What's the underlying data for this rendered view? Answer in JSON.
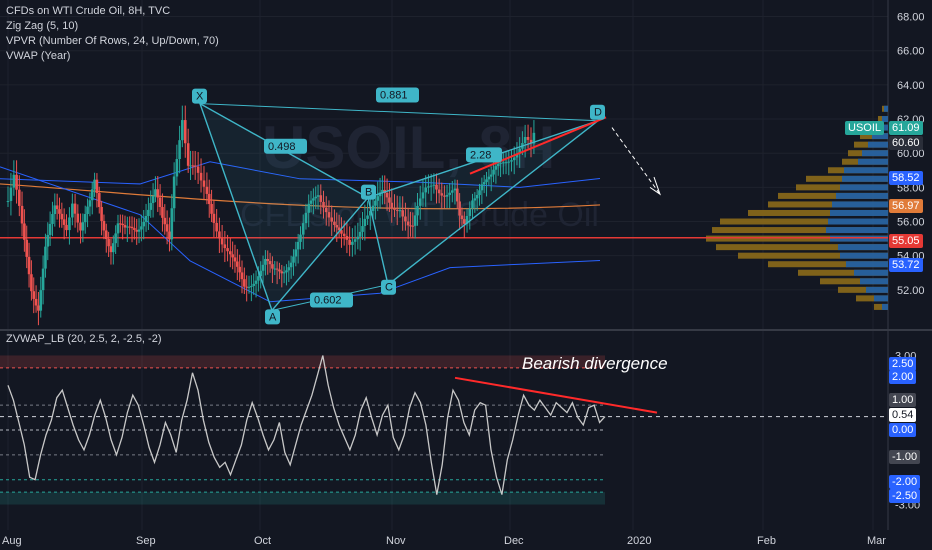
{
  "header": {
    "title": "CFDs on WTI Crude Oil, 8H, TVC",
    "indicators": [
      "Zig Zag (5, 10)",
      "VPVR (Number Of Rows, 24, Up/Down, 70)",
      "VWAP (Year)"
    ]
  },
  "watermark": {
    "symbol": "USOIL, 8H",
    "name": "CFDs on WTI Crude Oil"
  },
  "oscillator": {
    "title": "ZVWAP_LB (20, 2.5, 2, -2.5, -2)",
    "annotation": "Bearish divergence"
  },
  "colors": {
    "background": "#131722",
    "up": "#26a69a",
    "down": "#ef5350",
    "pattern": "#3fb6c8",
    "divergence": "#ff2a2a",
    "vwap": "#e07b39",
    "band": "#2962ff"
  },
  "price_tags": {
    "symbol": "USOIL",
    "last": "61.09",
    "prev": "60.60",
    "a": "58.52",
    "b": "56.97",
    "c": "55.05",
    "d": "53.72"
  },
  "osc_tags": {
    "t250": "2.50",
    "t200": "2.00",
    "t100": "1.00",
    "last": "0.54",
    "t000": "0.00",
    "m100": "-1.00",
    "m200": "-2.00",
    "m250": "-2.50"
  },
  "chart_data": [
    {
      "type": "candlestick",
      "title": "CFDs on WTI Crude Oil, 8H, TVC",
      "x_ticks": [
        "Aug",
        "Sep",
        "Oct",
        "Nov",
        "Dec",
        "2020",
        "Feb",
        "Mar"
      ],
      "y_ticks": [
        "52.00",
        "54.00",
        "56.00",
        "58.00",
        "60.00",
        "62.00",
        "64.00",
        "66.00",
        "68.00"
      ],
      "ylim": [
        50,
        68.5
      ],
      "close_path": [
        [
          0,
          57.2
        ],
        [
          0.5,
          58.4
        ],
        [
          1.2,
          55.5
        ],
        [
          2,
          52.2
        ],
        [
          2.6,
          51.2
        ],
        [
          3.2,
          54.5
        ],
        [
          4,
          56.5
        ],
        [
          5,
          55.8
        ],
        [
          5.5,
          57.5
        ],
        [
          6.2,
          55.6
        ],
        [
          7,
          56.8
        ],
        [
          7.4,
          58.1
        ],
        [
          8,
          56.2
        ],
        [
          8.8,
          54.6
        ],
        [
          9.4,
          55.8
        ],
        [
          10,
          55.2
        ],
        [
          11,
          55.6
        ],
        [
          11.8,
          56.7
        ],
        [
          12.6,
          57.6
        ],
        [
          13.2,
          55.8
        ],
        [
          13.8,
          55.0
        ],
        [
          14.2,
          59.0
        ],
        [
          14.9,
          62.3
        ],
        [
          15.4,
          59.3
        ],
        [
          16,
          58.8
        ],
        [
          16.5,
          58.0
        ],
        [
          17,
          57.5
        ],
        [
          17.6,
          56.3
        ],
        [
          18.3,
          55.0
        ],
        [
          19,
          53.9
        ],
        [
          19.6,
          52.9
        ],
        [
          20.2,
          52.1
        ],
        [
          21,
          52.8
        ],
        [
          22,
          53.6
        ],
        [
          22.6,
          52.8
        ],
        [
          23.4,
          53.1
        ],
        [
          24.2,
          54.0
        ],
        [
          25,
          55.0
        ],
        [
          25.7,
          56.6
        ],
        [
          26.5,
          57.7
        ],
        [
          27.2,
          57.0
        ],
        [
          27.9,
          55.9
        ],
        [
          28.5,
          54.9
        ],
        [
          29.2,
          54.3
        ],
        [
          29.9,
          55.3
        ],
        [
          30.5,
          56.6
        ],
        [
          31.2,
          57.0
        ],
        [
          32,
          57.4
        ],
        [
          32.8,
          56.8
        ],
        [
          33.5,
          57.1
        ],
        [
          34.2,
          56.0
        ],
        [
          34.6,
          55.6
        ],
        [
          35,
          56.5
        ],
        [
          35.7,
          57.7
        ],
        [
          36.4,
          58.4
        ],
        [
          37.3,
          57.8
        ],
        [
          38.2,
          57.6
        ],
        [
          38.6,
          55.9
        ],
        [
          39,
          55.6
        ],
        [
          39.7,
          57.5
        ],
        [
          40.5,
          58.5
        ],
        [
          41.3,
          58.4
        ],
        [
          42.1,
          59.2
        ],
        [
          42.8,
          59.8
        ],
        [
          43.5,
          60.4
        ],
        [
          44.2,
          60.9
        ],
        [
          44.7,
          60.2
        ],
        [
          45.2,
          61.3
        ]
      ]
    },
    {
      "type": "line",
      "title": "ZVWAP_LB (20, 2.5, 2, -2.5, -2)",
      "y_ticks": [
        "3.00",
        "-3.00"
      ],
      "ylim": [
        -3.3,
        3.3
      ],
      "values": [
        1.8,
        1.2,
        0.3,
        -0.6,
        -1.9,
        -2.0,
        -1.0,
        -0.2,
        0.4,
        1.3,
        1.6,
        0.9,
        0.2,
        -0.4,
        -0.8,
        -0.2,
        0.6,
        1.2,
        0.5,
        -0.4,
        -1.0,
        -0.3,
        0.7,
        1.4,
        1.0,
        0.2,
        -0.7,
        -1.3,
        -0.6,
        0.3,
        -0.2,
        -0.9,
        0.4,
        1.2,
        2.3,
        1.6,
        0.4,
        -0.5,
        -1.1,
        -1.5,
        -1.3,
        -1.8,
        -1.2,
        -0.6,
        0.4,
        1.1,
        0.5,
        -0.2,
        -0.8,
        -0.4,
        0.3,
        -0.9,
        -1.4,
        -0.6,
        0.2,
        0.8,
        1.4,
        2.2,
        3.0,
        1.8,
        0.9,
        0.2,
        -0.3,
        -0.8,
        -0.2,
        0.8,
        1.3,
        0.5,
        -0.2,
        0.6,
        1.0,
        -0.3,
        -0.8,
        -0.2,
        0.9,
        1.5,
        1.1,
        0.2,
        -1.3,
        -2.6,
        -1.4,
        0.5,
        1.6,
        1.2,
        0.3,
        -0.2,
        0.8,
        1.1,
        1.0,
        -0.8,
        -1.9,
        -2.6,
        -1.2,
        -0.4,
        0.6,
        1.4,
        1.0,
        0.8,
        1.2,
        0.9,
        0.6,
        1.1,
        0.9,
        0.7,
        1.1,
        0.5,
        0.2,
        0.9,
        1.0,
        0.3,
        0.54
      ]
    }
  ]
}
